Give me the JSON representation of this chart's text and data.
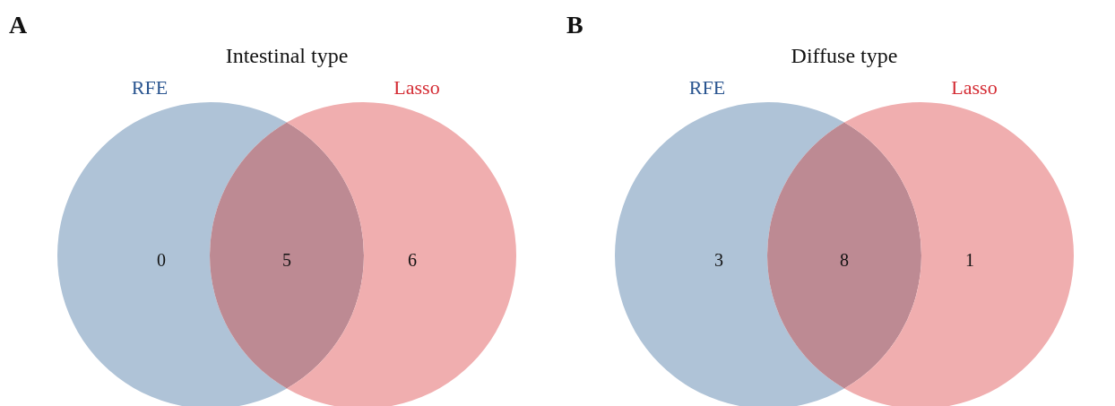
{
  "chart_data": [
    {
      "type": "other",
      "title": "Intestinal type",
      "annotations": [
        "A"
      ],
      "categories": [
        "RFE",
        null,
        "Lasso"
      ],
      "values": [
        0,
        5,
        6
      ],
      "colors": [
        "#afc3d7",
        "#bd8a93",
        "#f0aeaf"
      ],
      "data_labels": true
    },
    {
      "type": "other",
      "title": "Diffuse type",
      "annotations": [
        "B"
      ],
      "categories": [
        "RFE",
        null,
        "Lasso"
      ],
      "values": [
        3,
        8,
        1
      ],
      "colors": [
        "#afc3d7",
        "#bd8a93",
        "#f0aeaf"
      ],
      "data_labels": true
    }
  ]
}
